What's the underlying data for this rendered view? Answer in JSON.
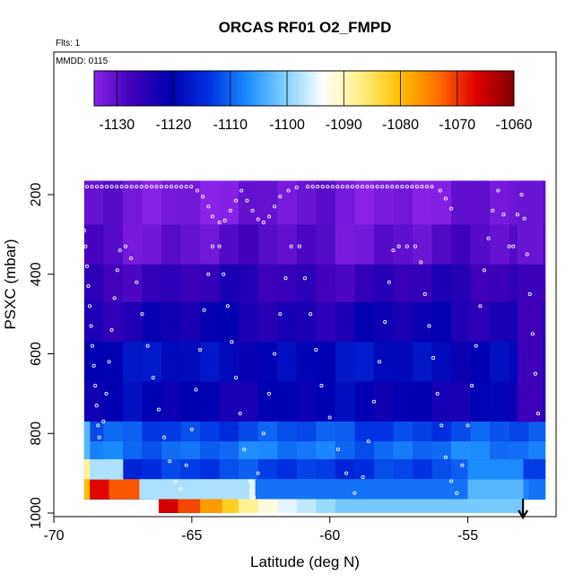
{
  "chart_data": {
    "type": "heatmap",
    "title": "ORCAS RF01 O2_FMPD",
    "flights_label": "Flts: 1",
    "mmdd_label": "MMDD: 0115",
    "xlabel": "Latitude (deg N)",
    "ylabel": "PSXC (mbar)",
    "xlim": [
      -70,
      -51.8
    ],
    "ylim": [
      1000,
      100
    ],
    "x_ticks": [
      -70,
      -65,
      -60,
      -55
    ],
    "x_tick_labels": [
      "-70",
      "-65",
      "-60",
      "-55"
    ],
    "y_ticks": [
      200,
      400,
      600,
      800,
      1000
    ],
    "y_tick_labels": [
      "200",
      "400",
      "600",
      "800",
      "1000"
    ],
    "colorbar": {
      "min": -1134,
      "max": -1060,
      "ticks": [
        -1130,
        -1120,
        -1110,
        -1100,
        -1090,
        -1080,
        -1070,
        -1060
      ],
      "tick_labels": [
        "-1130",
        "-1120",
        "-1110",
        "-1100",
        "-1090",
        "-1080",
        "-1070",
        "-1060"
      ],
      "colors": [
        "#8b22e8",
        "#3e00b8",
        "#0000b0",
        "#0030e0",
        "#1a8cff",
        "#80d0ff",
        "#ffffff",
        "#fff080",
        "#ffc000",
        "#ff7000",
        "#e00000",
        "#800000"
      ]
    },
    "grid": false,
    "x_bin_edges": [
      -68.9,
      -68.2,
      -67.5,
      -66.8,
      -66.1,
      -65.4,
      -64.7,
      -64.0,
      -63.3,
      -62.6,
      -61.9,
      -61.2,
      -60.5,
      -59.8,
      -59.1,
      -58.4,
      -57.7,
      -57.0,
      -56.3,
      -55.6,
      -54.9,
      -54.2,
      -53.5,
      -52.8,
      -52.2
    ],
    "pressure_bands": [
      {
        "p_top": 165,
        "p_bot": 275,
        "value": -1132
      },
      {
        "p_top": 275,
        "p_bot": 375,
        "value": -1130
      },
      {
        "p_top": 375,
        "p_bot": 470,
        "value": -1126
      },
      {
        "p_top": 470,
        "p_bot": 570,
        "value": -1123
      },
      {
        "p_top": 570,
        "p_bot": 670,
        "value": -1119
      },
      {
        "p_top": 670,
        "p_bot": 770,
        "value": -1121
      },
      {
        "p_top": 770,
        "p_bot": 820,
        "value": -1112
      },
      {
        "p_top": 820,
        "p_bot": 865,
        "value": -1109
      },
      {
        "p_top": 865,
        "p_bot": 915,
        "value": -1113
      },
      {
        "p_top": 915,
        "p_bot": 965,
        "value": -1108
      }
    ],
    "anomalies": [
      {
        "lat_min": -68.9,
        "lat_max": -68.7,
        "p_top": 770,
        "p_bot": 865,
        "value": -1103
      },
      {
        "lat_min": -68.9,
        "lat_max": -68.7,
        "p_top": 865,
        "p_bot": 915,
        "value": -1088
      },
      {
        "lat_min": -68.9,
        "lat_max": -68.7,
        "p_top": 915,
        "p_bot": 965,
        "value": -1080
      },
      {
        "lat_min": -68.7,
        "lat_max": -68.0,
        "p_top": 915,
        "p_bot": 965,
        "value": -1067
      },
      {
        "lat_min": -68.0,
        "lat_max": -66.9,
        "p_top": 915,
        "p_bot": 965,
        "value": -1072
      },
      {
        "lat_min": -66.9,
        "lat_max": -62.9,
        "p_top": 915,
        "p_bot": 965,
        "value": -1098
      },
      {
        "lat_min": -62.9,
        "lat_max": -62.7,
        "p_top": 915,
        "p_bot": 965,
        "value": -1095
      },
      {
        "lat_min": -62.7,
        "lat_max": -55.0,
        "p_top": 915,
        "p_bot": 965,
        "value": -1109
      },
      {
        "lat_min": -55.0,
        "lat_max": -53.0,
        "p_top": 915,
        "p_bot": 965,
        "value": -1103
      },
      {
        "lat_min": -68.7,
        "lat_max": -67.5,
        "p_top": 865,
        "p_bot": 915,
        "value": -1098
      },
      {
        "lat_min": -55.0,
        "lat_max": -53.0,
        "p_top": 865,
        "p_bot": 915,
        "value": -1107
      },
      {
        "lat_min": -53.2,
        "lat_max": -52.3,
        "p_top": 165,
        "p_bot": 375,
        "value": -1131
      },
      {
        "lat_min": -53.2,
        "lat_max": -52.3,
        "p_top": 375,
        "p_bot": 770,
        "value": -1127
      },
      {
        "lat_min": -52.3,
        "lat_max": -52.2,
        "p_top": 570,
        "p_bot": 770,
        "value": -1125
      }
    ],
    "surface_strip": {
      "p_top": 965,
      "p_bot": 1000,
      "cells": [
        {
          "lat_min": -66.2,
          "lat_max": -65.5,
          "value": -1066
        },
        {
          "lat_min": -65.5,
          "lat_max": -64.7,
          "value": -1071
        },
        {
          "lat_min": -64.7,
          "lat_max": -63.9,
          "value": -1077
        },
        {
          "lat_min": -63.9,
          "lat_max": -63.3,
          "value": -1082
        },
        {
          "lat_min": -63.3,
          "lat_max": -62.6,
          "value": -1088
        },
        {
          "lat_min": -62.6,
          "lat_max": -61.9,
          "value": -1092
        },
        {
          "lat_min": -61.9,
          "lat_max": -61.2,
          "value": -1095
        },
        {
          "lat_min": -61.2,
          "lat_max": -60.5,
          "value": -1097
        },
        {
          "lat_min": -60.5,
          "lat_max": -59.8,
          "value": -1099
        },
        {
          "lat_min": -59.8,
          "lat_max": -53.0,
          "value": -1101
        }
      ]
    },
    "flight_track": [
      {
        "lat": -68.9,
        "p": 290
      },
      {
        "lat": -68.85,
        "p": 330
      },
      {
        "lat": -68.8,
        "p": 380
      },
      {
        "lat": -68.75,
        "p": 430
      },
      {
        "lat": -68.7,
        "p": 480
      },
      {
        "lat": -68.65,
        "p": 530
      },
      {
        "lat": -68.6,
        "p": 580
      },
      {
        "lat": -68.55,
        "p": 630
      },
      {
        "lat": -68.5,
        "p": 680
      },
      {
        "lat": -68.45,
        "p": 730
      },
      {
        "lat": -68.4,
        "p": 780
      },
      {
        "lat": -68.35,
        "p": 810
      },
      {
        "lat": -68.2,
        "p": 770
      },
      {
        "lat": -68.1,
        "p": 700
      },
      {
        "lat": -68.0,
        "p": 620
      },
      {
        "lat": -67.9,
        "p": 540
      },
      {
        "lat": -67.8,
        "p": 460
      },
      {
        "lat": -67.7,
        "p": 390
      },
      {
        "lat": -67.6,
        "p": 340
      },
      {
        "lat": -67.4,
        "p": 330
      },
      {
        "lat": -67.2,
        "p": 360
      },
      {
        "lat": -67.0,
        "p": 420
      },
      {
        "lat": -66.8,
        "p": 500
      },
      {
        "lat": -66.6,
        "p": 580
      },
      {
        "lat": -66.4,
        "p": 660
      },
      {
        "lat": -66.2,
        "p": 740
      },
      {
        "lat": -66.0,
        "p": 810
      },
      {
        "lat": -65.8,
        "p": 870
      },
      {
        "lat": -65.6,
        "p": 920
      },
      {
        "lat": -65.4,
        "p": 940
      },
      {
        "lat": -65.2,
        "p": 880
      },
      {
        "lat": -65.0,
        "p": 790
      },
      {
        "lat": -64.85,
        "p": 690
      },
      {
        "lat": -64.7,
        "p": 590
      },
      {
        "lat": -64.55,
        "p": 490
      },
      {
        "lat": -64.4,
        "p": 400
      },
      {
        "lat": -64.25,
        "p": 330
      },
      {
        "lat": -64.0,
        "p": 330
      },
      {
        "lat": -63.85,
        "p": 400
      },
      {
        "lat": -63.7,
        "p": 480
      },
      {
        "lat": -63.55,
        "p": 570
      },
      {
        "lat": -63.4,
        "p": 660
      },
      {
        "lat": -63.25,
        "p": 750
      },
      {
        "lat": -63.1,
        "p": 840
      },
      {
        "lat": -62.9,
        "p": 920
      },
      {
        "lat": -62.75,
        "p": 960
      },
      {
        "lat": -62.6,
        "p": 900
      },
      {
        "lat": -62.4,
        "p": 800
      },
      {
        "lat": -62.2,
        "p": 700
      },
      {
        "lat": -62.0,
        "p": 600
      },
      {
        "lat": -61.8,
        "p": 500
      },
      {
        "lat": -61.6,
        "p": 410
      },
      {
        "lat": -61.4,
        "p": 330
      },
      {
        "lat": -61.1,
        "p": 330
      },
      {
        "lat": -60.9,
        "p": 410
      },
      {
        "lat": -60.7,
        "p": 500
      },
      {
        "lat": -60.5,
        "p": 590
      },
      {
        "lat": -60.3,
        "p": 680
      },
      {
        "lat": -60.0,
        "p": 760
      },
      {
        "lat": -59.7,
        "p": 840
      },
      {
        "lat": -59.4,
        "p": 900
      },
      {
        "lat": -59.1,
        "p": 950
      },
      {
        "lat": -58.8,
        "p": 910
      },
      {
        "lat": -58.6,
        "p": 820
      },
      {
        "lat": -58.4,
        "p": 720
      },
      {
        "lat": -58.2,
        "p": 620
      },
      {
        "lat": -58.0,
        "p": 520
      },
      {
        "lat": -57.85,
        "p": 420
      },
      {
        "lat": -57.7,
        "p": 340
      },
      {
        "lat": -57.5,
        "p": 330
      },
      {
        "lat": -57.2,
        "p": 330
      },
      {
        "lat": -56.9,
        "p": 330
      },
      {
        "lat": -56.7,
        "p": 370
      },
      {
        "lat": -56.55,
        "p": 450
      },
      {
        "lat": -56.4,
        "p": 530
      },
      {
        "lat": -56.25,
        "p": 610
      },
      {
        "lat": -56.1,
        "p": 700
      },
      {
        "lat": -55.95,
        "p": 780
      },
      {
        "lat": -55.8,
        "p": 860
      },
      {
        "lat": -55.6,
        "p": 920
      },
      {
        "lat": -55.4,
        "p": 950
      },
      {
        "lat": -55.2,
        "p": 880
      },
      {
        "lat": -55.0,
        "p": 780
      },
      {
        "lat": -54.85,
        "p": 680
      },
      {
        "lat": -54.7,
        "p": 580
      },
      {
        "lat": -54.55,
        "p": 480
      },
      {
        "lat": -54.4,
        "p": 390
      },
      {
        "lat": -54.25,
        "p": 310
      },
      {
        "lat": -54.1,
        "p": 240
      },
      {
        "lat": -53.9,
        "p": 190
      },
      {
        "lat": -53.7,
        "p": 250
      },
      {
        "lat": -53.5,
        "p": 330
      },
      {
        "lat": -53.35,
        "p": 330
      },
      {
        "lat": -53.2,
        "p": 250
      },
      {
        "lat": -53.05,
        "p": 200
      },
      {
        "lat": -52.95,
        "p": 260
      },
      {
        "lat": -52.85,
        "p": 350
      },
      {
        "lat": -52.75,
        "p": 450
      },
      {
        "lat": -52.65,
        "p": 550
      },
      {
        "lat": -52.55,
        "p": 650
      },
      {
        "lat": -52.45,
        "p": 750
      }
    ],
    "upper_track": {
      "p": 180,
      "segments": [
        {
          "lat_start": -68.8,
          "lat_end": -65.0,
          "step": 0.18
        },
        {
          "lat_start": -60.8,
          "lat_end": -56.2,
          "step": 0.18
        }
      ],
      "dips": [
        {
          "lat": -64.8,
          "p": 190
        },
        {
          "lat": -64.6,
          "p": 205
        },
        {
          "lat": -64.4,
          "p": 230
        },
        {
          "lat": -64.25,
          "p": 255
        },
        {
          "lat": -64.0,
          "p": 270
        },
        {
          "lat": -63.8,
          "p": 265
        },
        {
          "lat": -63.6,
          "p": 240
        },
        {
          "lat": -63.4,
          "p": 215
        },
        {
          "lat": -63.2,
          "p": 190
        },
        {
          "lat": -63.0,
          "p": 215
        },
        {
          "lat": -62.8,
          "p": 240
        },
        {
          "lat": -62.6,
          "p": 262
        },
        {
          "lat": -62.4,
          "p": 270
        },
        {
          "lat": -62.2,
          "p": 255
        },
        {
          "lat": -62.0,
          "p": 230
        },
        {
          "lat": -61.8,
          "p": 205
        },
        {
          "lat": -61.5,
          "p": 190
        },
        {
          "lat": -61.2,
          "p": 182
        },
        {
          "lat": -56.0,
          "p": 190
        },
        {
          "lat": -55.8,
          "p": 210
        },
        {
          "lat": -55.6,
          "p": 235
        }
      ]
    },
    "arrow_lat": -53.0
  }
}
